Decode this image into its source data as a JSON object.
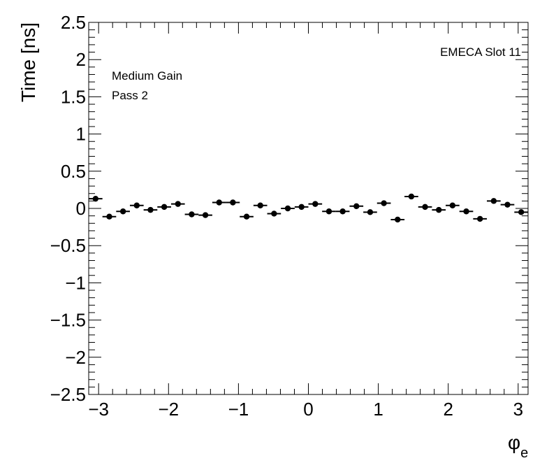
{
  "chart_data": {
    "type": "scatter",
    "ylabel": "Time [ns]",
    "xlabel": {
      "main": "φ",
      "sub": "e"
    },
    "xlim": [
      -3.1416,
      3.1416
    ],
    "ylim": [
      -2.5,
      2.5
    ],
    "x_ticks": [
      -3,
      -2,
      -1,
      0,
      1,
      2,
      3
    ],
    "x_tick_labels": [
      "−3",
      "−2",
      "−1",
      "0",
      "1",
      "2",
      "3"
    ],
    "y_ticks": [
      -2.5,
      -2,
      -1.5,
      -1,
      -0.5,
      0,
      0.5,
      1,
      1.5,
      2,
      2.5
    ],
    "y_tick_labels": [
      "−2.5",
      "−2",
      "−1.5",
      "−1",
      "−0.5",
      "0",
      "0.5",
      "1",
      "1.5",
      "2",
      "2.5"
    ],
    "grid": false,
    "bins": 32,
    "values": [
      0.13,
      -0.11,
      -0.04,
      0.04,
      -0.02,
      0.02,
      0.06,
      -0.08,
      -0.09,
      0.08,
      0.08,
      -0.11,
      0.04,
      -0.07,
      0.0,
      0.02,
      0.06,
      -0.04,
      -0.04,
      0.03,
      -0.05,
      0.07,
      -0.15,
      0.16,
      0.02,
      -0.02,
      0.04,
      -0.04,
      -0.14,
      0.1,
      0.05,
      -0.05
    ],
    "annotations": {
      "top_right": "EMECA Slot 11",
      "line1": "Medium Gain",
      "line2": "Pass 2"
    }
  }
}
